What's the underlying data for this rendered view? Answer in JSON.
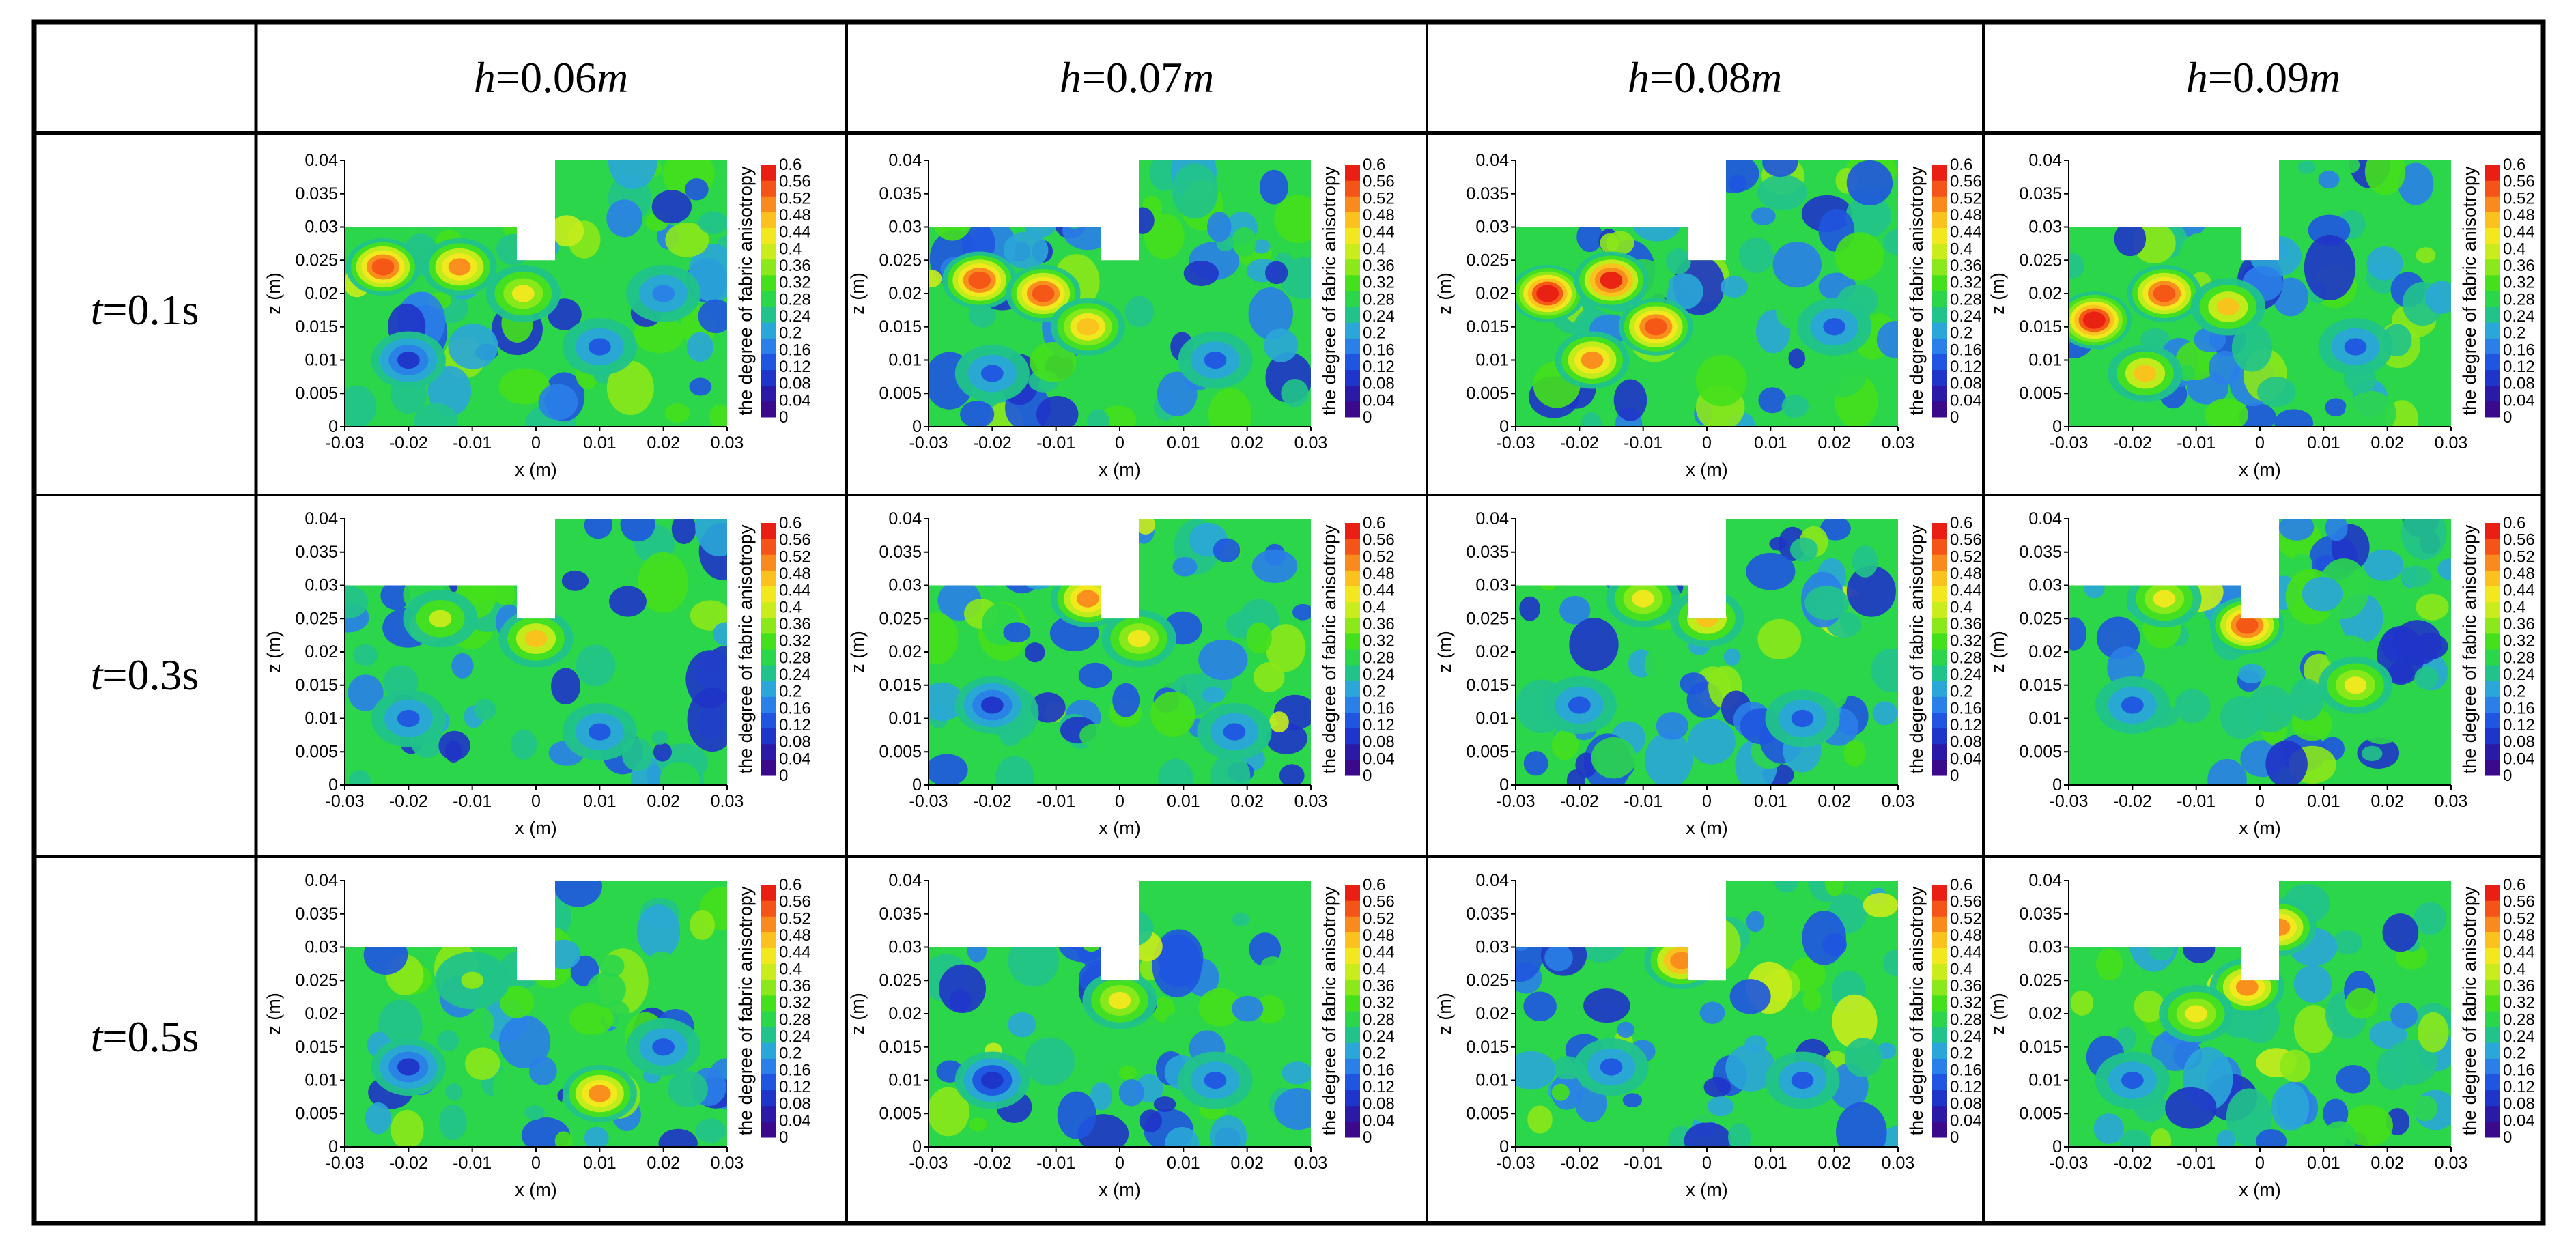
{
  "figure": {
    "corner": "",
    "columns": [
      {
        "var": "h",
        "eq": "=0.06",
        "unit": "m"
      },
      {
        "var": "h",
        "eq": "=0.07",
        "unit": "m"
      },
      {
        "var": "h",
        "eq": "=0.08",
        "unit": "m"
      },
      {
        "var": "h",
        "eq": "=0.09",
        "unit": "m"
      }
    ],
    "rows": [
      {
        "var": "t",
        "eq": "=0.1s"
      },
      {
        "var": "t",
        "eq": "=0.3s"
      },
      {
        "var": "t",
        "eq": "=0.5s"
      }
    ]
  },
  "chart_data": {
    "type": "heatmap",
    "description_quantity": "the degree of fabric anisotropy",
    "xlabel": "x (m)",
    "ylabel": "z (m)",
    "xlim": [
      -0.03,
      0.03
    ],
    "ylim": [
      0,
      0.04
    ],
    "xticks": [
      "-0.03",
      "-0.02",
      "-0.01",
      "0",
      "0.01",
      "0.02",
      "0.03"
    ],
    "yticks": [
      "0",
      "0.005",
      "0.01",
      "0.015",
      "0.02",
      "0.025",
      "0.03",
      "0.035",
      "0.04"
    ],
    "colorbar": {
      "title": "the degree of fabric anisotropy",
      "min": 0,
      "max": 0.6,
      "ticks": [
        "0",
        "0.04",
        "0.08",
        "0.12",
        "0.16",
        "0.2",
        "0.24",
        "0.28",
        "0.32",
        "0.36",
        "0.4",
        "0.44",
        "0.48",
        "0.52",
        "0.56",
        "0.6"
      ],
      "colors": [
        "#3b0a8c",
        "#2b1aa8",
        "#1f34c8",
        "#1f55e0",
        "#2a7fe8",
        "#2aa6d8",
        "#21c38a",
        "#2bd64a",
        "#44e01c",
        "#8be81a",
        "#c8ec1c",
        "#f3e81f",
        "#fbc11e",
        "#f98a1d",
        "#f45417",
        "#e81f12"
      ]
    },
    "geometry": {
      "void_left_x": [
        -0.03,
        -0.003
      ],
      "void_left_z_min": 0.03,
      "notch_x": [
        -0.003,
        0.003
      ],
      "notch_z_min": 0.025
    },
    "panels": [
      {
        "row": "t=0.1s",
        "col": "h=0.06m",
        "hotspots": [
          [
            -0.024,
            0.024,
            0.55
          ],
          [
            -0.012,
            0.024,
            0.5
          ],
          [
            -0.002,
            0.02,
            0.42
          ],
          [
            -0.02,
            0.01,
            0.1
          ],
          [
            0.01,
            0.012,
            0.12
          ],
          [
            0.02,
            0.02,
            0.15
          ]
        ]
      },
      {
        "row": "t=0.1s",
        "col": "h=0.07m",
        "hotspots": [
          [
            -0.022,
            0.022,
            0.55
          ],
          [
            -0.012,
            0.02,
            0.55
          ],
          [
            -0.005,
            0.015,
            0.48
          ],
          [
            -0.02,
            0.008,
            0.12
          ],
          [
            0.015,
            0.01,
            0.12
          ]
        ]
      },
      {
        "row": "t=0.1s",
        "col": "h=0.08m",
        "hotspots": [
          [
            -0.025,
            0.02,
            0.6
          ],
          [
            -0.015,
            0.022,
            0.58
          ],
          [
            -0.008,
            0.015,
            0.55
          ],
          [
            -0.018,
            0.01,
            0.5
          ],
          [
            0.02,
            0.015,
            0.12
          ]
        ]
      },
      {
        "row": "t=0.1s",
        "col": "h=0.09m",
        "hotspots": [
          [
            -0.026,
            0.016,
            0.6
          ],
          [
            -0.015,
            0.02,
            0.55
          ],
          [
            -0.005,
            0.018,
            0.45
          ],
          [
            -0.018,
            0.008,
            0.45
          ],
          [
            0.015,
            0.012,
            0.12
          ]
        ]
      },
      {
        "row": "t=0.3s",
        "col": "h=0.06m",
        "hotspots": [
          [
            -0.015,
            0.025,
            0.4
          ],
          [
            0.0,
            0.022,
            0.45
          ],
          [
            -0.02,
            0.01,
            0.12
          ],
          [
            0.01,
            0.008,
            0.12
          ]
        ]
      },
      {
        "row": "t=0.3s",
        "col": "h=0.07m",
        "hotspots": [
          [
            -0.005,
            0.028,
            0.5
          ],
          [
            0.003,
            0.022,
            0.42
          ],
          [
            -0.02,
            0.012,
            0.1
          ],
          [
            0.018,
            0.008,
            0.12
          ]
        ]
      },
      {
        "row": "t=0.3s",
        "col": "h=0.08m",
        "hotspots": [
          [
            -0.01,
            0.028,
            0.42
          ],
          [
            0.0,
            0.025,
            0.45
          ],
          [
            -0.02,
            0.012,
            0.12
          ],
          [
            0.015,
            0.01,
            0.12
          ]
        ]
      },
      {
        "row": "t=0.3s",
        "col": "h=0.09m",
        "hotspots": [
          [
            -0.002,
            0.024,
            0.55
          ],
          [
            -0.015,
            0.028,
            0.42
          ],
          [
            -0.02,
            0.012,
            0.12
          ],
          [
            0.015,
            0.015,
            0.42
          ]
        ]
      },
      {
        "row": "t=0.5s",
        "col": "h=0.06m",
        "hotspots": [
          [
            -0.01,
            0.025,
            0.35
          ],
          [
            0.01,
            0.008,
            0.5
          ],
          [
            -0.02,
            0.012,
            0.1
          ],
          [
            0.02,
            0.015,
            0.12
          ]
        ]
      },
      {
        "row": "t=0.5s",
        "col": "h=0.07m",
        "hotspots": [
          [
            0.0,
            0.022,
            0.42
          ],
          [
            -0.02,
            0.01,
            0.08
          ],
          [
            0.015,
            0.01,
            0.12
          ]
        ]
      },
      {
        "row": "t=0.5s",
        "col": "h=0.08m",
        "hotspots": [
          [
            -0.004,
            0.028,
            0.52
          ],
          [
            -0.015,
            0.012,
            0.12
          ],
          [
            0.015,
            0.01,
            0.12
          ]
        ]
      },
      {
        "row": "t=0.5s",
        "col": "h=0.09m",
        "hotspots": [
          [
            0.003,
            0.033,
            0.5
          ],
          [
            -0.002,
            0.024,
            0.5
          ],
          [
            -0.01,
            0.02,
            0.42
          ],
          [
            -0.02,
            0.01,
            0.12
          ]
        ]
      }
    ]
  }
}
